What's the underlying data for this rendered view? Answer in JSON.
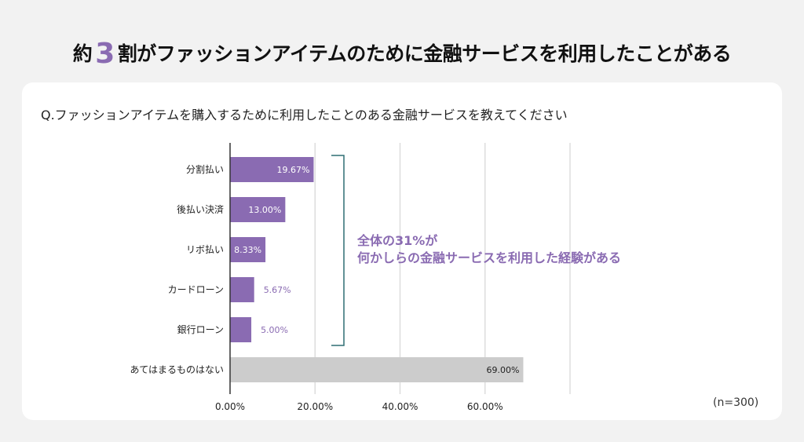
{
  "title": {
    "prefix": "約",
    "highlight": "3",
    "suffix": "割がファッションアイテムのために金融サービスを利用したことがある"
  },
  "question": "Q.ファッションアイテムを購入するために利用したことのある金融サービスを教えてください",
  "sample_size": "(n=300)",
  "annotation": {
    "line1": "全体の31%が",
    "line2": "何かしらの金融サービスを利用した経験がある"
  },
  "colors": {
    "highlight": "#8a6bb2",
    "bar": "#8a6bb2",
    "bar_none": "#cccccc",
    "bracket": "#2f6f73"
  },
  "chart_data": {
    "type": "bar",
    "orientation": "horizontal",
    "categories": [
      "分割払い",
      "後払い決済",
      "リボ払い",
      "カードローン",
      "銀行ローン",
      "あてはまるものはない"
    ],
    "values": [
      19.67,
      13.0,
      8.33,
      5.67,
      5.0,
      69.0
    ],
    "data_labels": [
      "19.67%",
      "13.00%",
      "8.33%",
      "5.67%",
      "5.00%",
      "69.00%"
    ],
    "xlim": [
      0,
      80
    ],
    "xticks": [
      0,
      20,
      40,
      60,
      80
    ],
    "xtick_labels": [
      "0.00%",
      "20.00%",
      "40.00%",
      "60.00%",
      ""
    ],
    "grid": true
  }
}
